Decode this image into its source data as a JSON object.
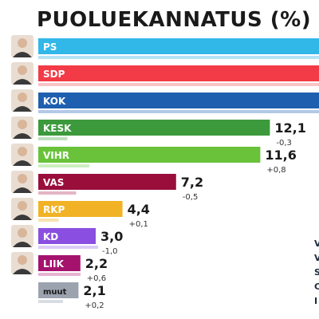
{
  "chart_data": {
    "type": "bar",
    "title": "PUOLUEKANNATUS (%)",
    "categories": [
      "PS",
      "SDP",
      "KOK",
      "KESK",
      "VIHR",
      "VAS",
      "RKP",
      "KD",
      "LIIK",
      "muut"
    ],
    "values": [
      null,
      null,
      null,
      12.1,
      11.6,
      7.2,
      4.4,
      3.0,
      2.2,
      2.1
    ],
    "value_labels": [
      "",
      "",
      "",
      "12,1",
      "11,6",
      "7,2",
      "4,4",
      "3,0",
      "2,2",
      "2,1"
    ],
    "change_labels": [
      "",
      "",
      "",
      "-0,3",
      "+0,8",
      "-0,5",
      "+0,1",
      "-1,0",
      "+0,6",
      "+0,2"
    ],
    "colors": [
      "#31b7e8",
      "#f23b46",
      "#1f5fb0",
      "#3c9a3c",
      "#69c23a",
      "#9a0e3c",
      "#f1b325",
      "#8a4fe0",
      "#a4126e",
      "#9ca3af"
    ],
    "change_bar_colors": [
      "#b5e2f5",
      "#f9c4c7",
      "#b3c8e6",
      "#bfe0bf",
      "#cdeec0",
      "#e3b6c4",
      "#f9e2b0",
      "#dbcbf6",
      "#e7b4d1",
      "#d8dde3"
    ],
    "party_photos": [
      "",
      "",
      "",
      "",
      "",
      "",
      "",
      "",
      "",
      "muut"
    ],
    "ylim": [
      0,
      16
    ]
  },
  "side_note": [
    "V",
    "V",
    "S",
    "C",
    "I"
  ]
}
